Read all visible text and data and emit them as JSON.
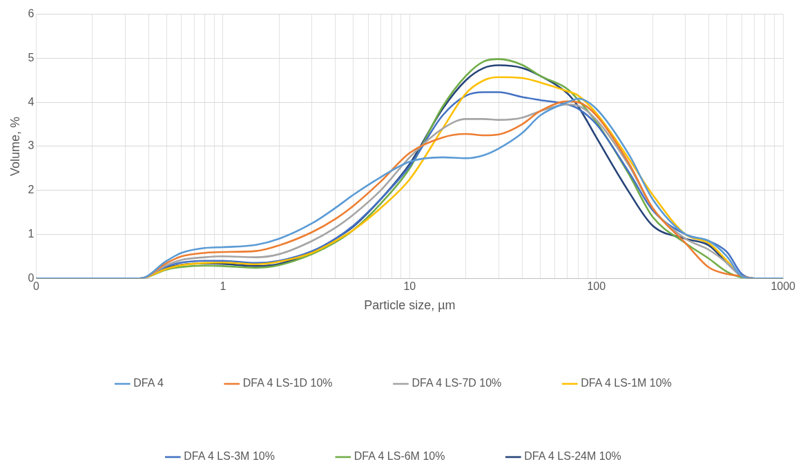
{
  "chart_data": {
    "type": "line",
    "xlabel": "Particle size, µm",
    "ylabel": "Volume, %",
    "log": "x",
    "xlim": [
      0.1,
      1000
    ],
    "xticks": [
      {
        "value": 0.1,
        "label": "0"
      },
      1,
      10,
      100,
      1000
    ],
    "ylim": [
      0,
      6
    ],
    "yticks": [
      0,
      1,
      2,
      3,
      4,
      5,
      6
    ],
    "grid": true,
    "legend": "bottom",
    "marker": "none",
    "line_style": "solid",
    "x": [
      0.1,
      0.36,
      0.5,
      0.6,
      0.8,
      1,
      1.5,
      2,
      3,
      4,
      5,
      7,
      10,
      15,
      20,
      25,
      30,
      40,
      50,
      70,
      80,
      100,
      150,
      200,
      300,
      400,
      500,
      600,
      700,
      1000
    ],
    "series": [
      {
        "name": "DFA 4",
        "color": "#5b9bd5",
        "values": [
          0,
          0,
          0.4,
          0.58,
          0.69,
          0.71,
          0.76,
          0.9,
          1.25,
          1.6,
          1.9,
          2.3,
          2.65,
          2.75,
          2.73,
          2.8,
          2.95,
          3.3,
          3.7,
          4.0,
          4.08,
          3.85,
          2.8,
          1.8,
          1.0,
          0.85,
          0.5,
          0.05,
          0,
          0
        ]
      },
      {
        "name": "DFA 4 LS-1D 10%",
        "color": "#ed7d31",
        "values": [
          0,
          0,
          0.35,
          0.5,
          0.58,
          0.6,
          0.62,
          0.75,
          1.05,
          1.35,
          1.65,
          2.2,
          2.85,
          3.2,
          3.28,
          3.25,
          3.27,
          3.5,
          3.8,
          4.02,
          4.0,
          3.7,
          2.6,
          1.6,
          0.8,
          0.25,
          0.1,
          0.05,
          0,
          0
        ]
      },
      {
        "name": "DFA 4 LS-7D 10%",
        "color": "#a5a5a5",
        "values": [
          0,
          0,
          0.3,
          0.42,
          0.48,
          0.5,
          0.48,
          0.55,
          0.85,
          1.15,
          1.45,
          2.0,
          2.75,
          3.4,
          3.62,
          3.62,
          3.6,
          3.65,
          3.8,
          3.95,
          3.92,
          3.6,
          2.55,
          1.6,
          0.9,
          0.65,
          0.35,
          0.05,
          0,
          0
        ]
      },
      {
        "name": "DFA 4 LS-1M 10%",
        "color": "#ffc000",
        "values": [
          0,
          0,
          0.22,
          0.3,
          0.35,
          0.36,
          0.32,
          0.38,
          0.58,
          0.85,
          1.1,
          1.6,
          2.25,
          3.4,
          4.2,
          4.5,
          4.57,
          4.55,
          4.45,
          4.25,
          4.15,
          3.75,
          2.7,
          1.9,
          1.0,
          0.8,
          0.4,
          0.05,
          0,
          0
        ]
      },
      {
        "name": "DFA 4 LS-3M 10%",
        "color": "#4472c4",
        "values": [
          0,
          0,
          0.27,
          0.36,
          0.4,
          0.4,
          0.35,
          0.4,
          0.62,
          0.9,
          1.2,
          1.8,
          2.55,
          3.7,
          4.15,
          4.23,
          4.23,
          4.12,
          4.05,
          3.95,
          3.85,
          3.5,
          2.4,
          1.55,
          1.0,
          0.85,
          0.6,
          0.1,
          0,
          0
        ]
      },
      {
        "name": "DFA 4 LS-6M 10%",
        "color": "#70ad47",
        "values": [
          0,
          0,
          0.2,
          0.26,
          0.29,
          0.28,
          0.24,
          0.3,
          0.55,
          0.82,
          1.1,
          1.7,
          2.5,
          3.9,
          4.6,
          4.93,
          4.98,
          4.85,
          4.6,
          4.3,
          4.05,
          3.55,
          2.35,
          1.4,
          0.8,
          0.45,
          0.15,
          0.02,
          0,
          0
        ]
      },
      {
        "name": "DFA 4 LS-24M 10%",
        "color": "#264478",
        "values": [
          0,
          0,
          0.24,
          0.31,
          0.34,
          0.33,
          0.28,
          0.33,
          0.6,
          0.9,
          1.18,
          1.8,
          2.6,
          3.85,
          4.5,
          4.78,
          4.84,
          4.78,
          4.6,
          4.2,
          3.9,
          3.2,
          1.95,
          1.2,
          0.9,
          0.75,
          0.35,
          0.05,
          0,
          0
        ]
      }
    ]
  }
}
